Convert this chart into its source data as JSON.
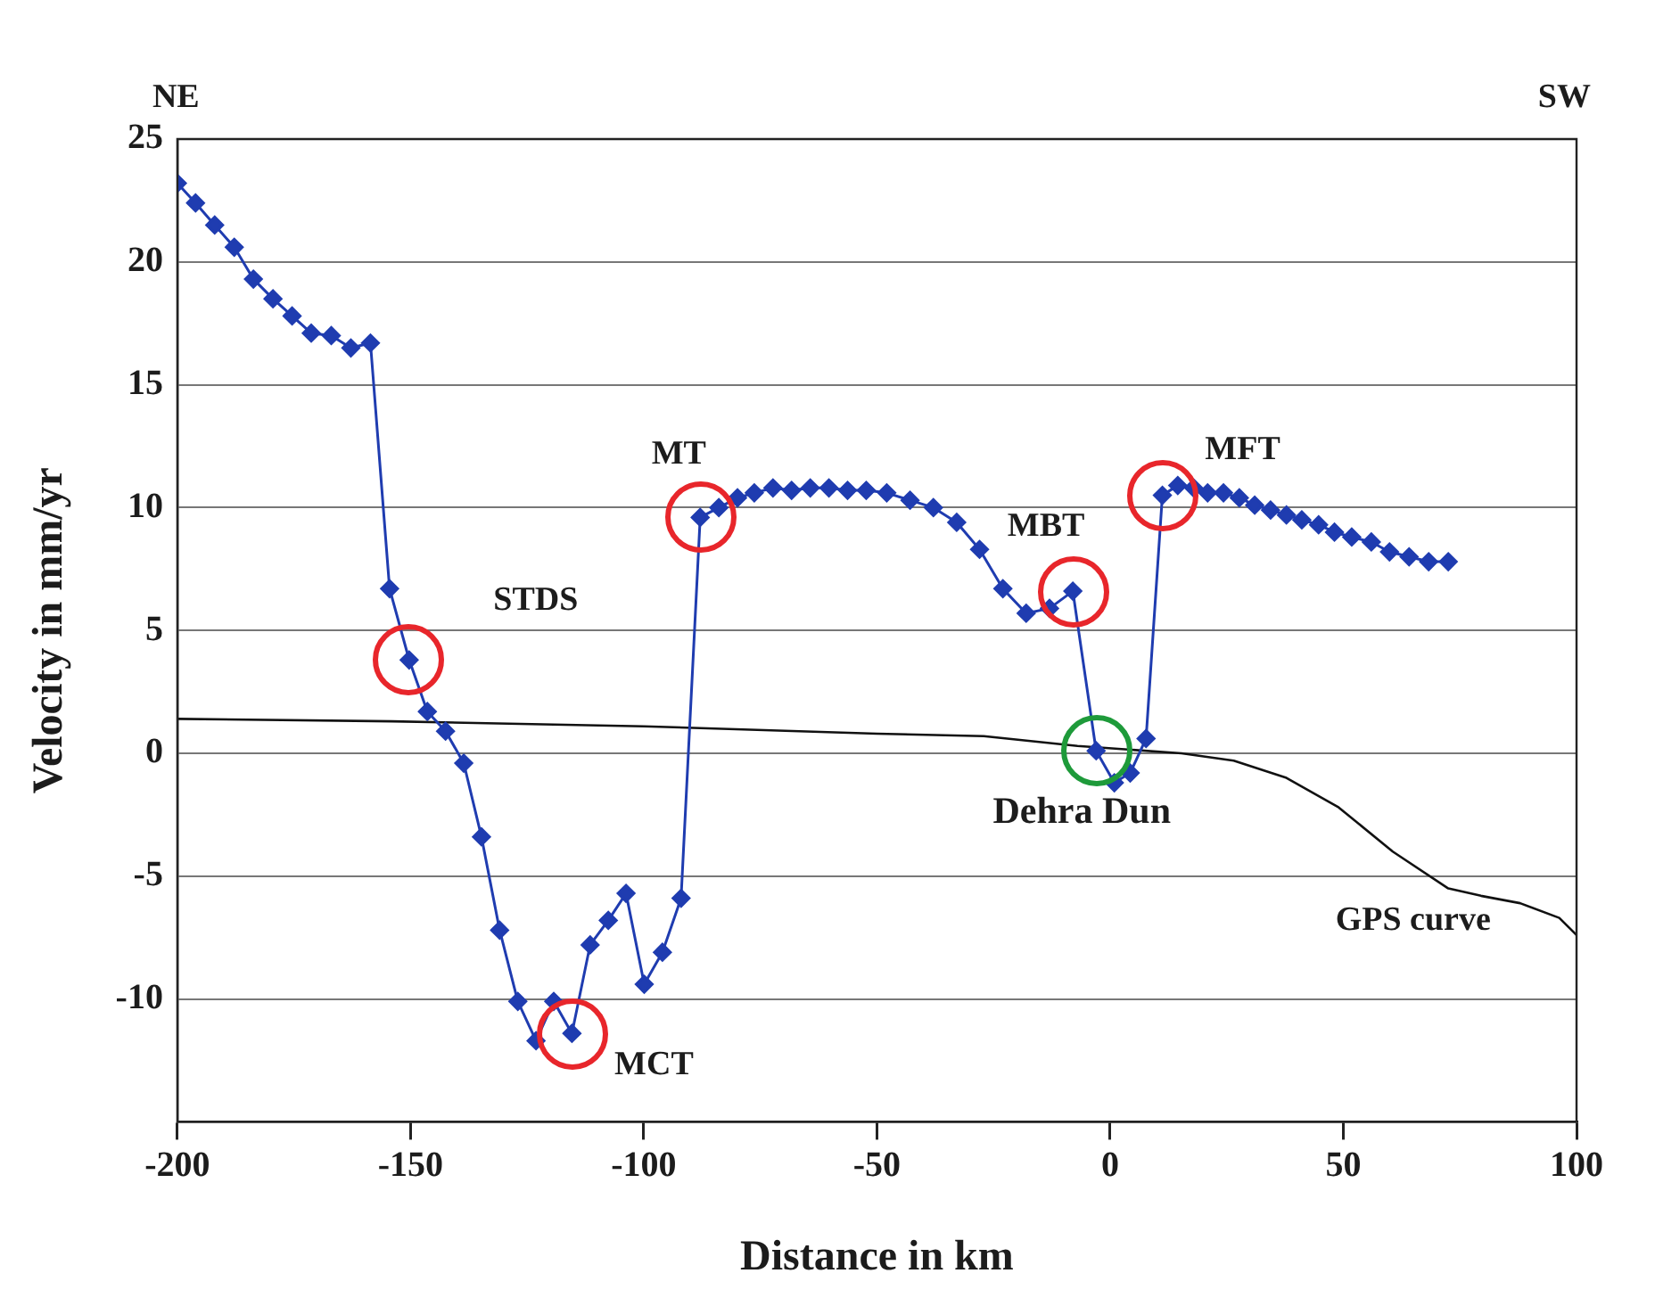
{
  "chart_data": {
    "type": "line",
    "xlabel": "Distance in km",
    "ylabel": "Velocity in mm/yr",
    "xlim": [
      -200,
      100
    ],
    "xticks": [
      -200,
      -150,
      -100,
      -50,
      0,
      50,
      100
    ],
    "ylim": [
      -15,
      25
    ],
    "yticks": [
      25,
      20,
      15,
      10,
      5,
      0,
      -5,
      -10
    ],
    "grid": "y",
    "legend": false,
    "marker": "diamond",
    "line_style": "solid",
    "series": [
      {
        "color": "#1f3cb0",
        "x": [
          -200,
          -196.1,
          -192,
          -187.8,
          -183.7,
          -179.5,
          -175.4,
          -171.3,
          -167,
          -162.8,
          -158.6,
          -154.5,
          -150.3,
          -146.4,
          -142.5,
          -138.6,
          -134.8,
          -130.9,
          -127,
          -123.1,
          -119.3,
          -115.4,
          -111.5,
          -107.6,
          -103.8,
          -99.9,
          -96,
          -92,
          -87.9,
          -83.9,
          -79.9,
          -76.3,
          -72.3,
          -68.3,
          -64.3,
          -60.3,
          -56.3,
          -52.3,
          -47.9,
          -42.9,
          -37.9,
          -32.9,
          -28,
          -23,
          -18,
          -13,
          -8,
          -3,
          0.9,
          4.3,
          7.7,
          11.2,
          14.5,
          17.9,
          20.9,
          24.3,
          27.7,
          31,
          34.4,
          37.8,
          41.1,
          44.7,
          48.1,
          51.8,
          56,
          59.9,
          64.1,
          68.3,
          72.5
        ],
        "values": [
          23.2,
          22.4,
          21.5,
          20.6,
          19.3,
          18.5,
          17.8,
          17.1,
          17,
          16.5,
          16.7,
          6.7,
          3.8,
          1.7,
          0.9,
          -0.4,
          -3.4,
          -7.2,
          -10.1,
          -11.7,
          -10.1,
          -11.4,
          -7.8,
          -6.8,
          -5.7,
          -9.4,
          -8.1,
          -5.9,
          9.6,
          10,
          10.4,
          10.6,
          10.8,
          10.7,
          10.8,
          10.8,
          10.7,
          10.7,
          10.6,
          10.3,
          10,
          9.4,
          8.3,
          6.7,
          5.7,
          5.9,
          6.6,
          0.1,
          -1.2,
          -0.8,
          0.6,
          10.5,
          10.9,
          10.8,
          10.6,
          10.6,
          10.4,
          10.1,
          9.9,
          9.7,
          9.5,
          9.3,
          9,
          8.8,
          8.6,
          8.2,
          8,
          7.8,
          7.8
        ]
      },
      {
        "name": "GPS curve",
        "color": "#111111",
        "marker": "none",
        "x": [
          -200,
          -154,
          -100,
          -50,
          -27.1,
          -7,
          15.3,
          26.5,
          37.8,
          49,
          60.6,
          72.5,
          79.5,
          87.9,
          96.3,
          100
        ],
        "values": [
          1.4,
          1.3,
          1.1,
          0.8,
          0.7,
          0.3,
          0,
          -0.3,
          -1,
          -2.2,
          -4,
          -5.5,
          -5.8,
          -6.1,
          -6.7,
          -7.4
        ]
      }
    ],
    "annotations": [
      "NE",
      "SW",
      {
        "text": "STDS",
        "x": -150.3,
        "y": 3.8
      },
      {
        "text": "MT",
        "x": -87.9,
        "y": 9.6
      },
      {
        "text": "MCT",
        "x": -115.4,
        "y": -11.4
      },
      {
        "text": "MBT",
        "x": -8,
        "y": 6.6
      },
      {
        "text": "Dehra Dun",
        "x": -3,
        "y": 0.1
      },
      {
        "text": "MFT",
        "x": 11.2,
        "y": 10.5
      }
    ]
  }
}
